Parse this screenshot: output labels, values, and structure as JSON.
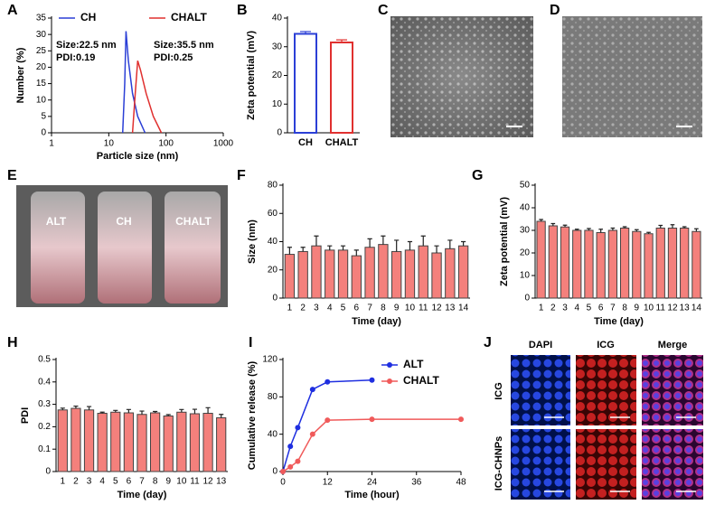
{
  "chart_data": [
    {
      "panel": "A",
      "type": "line",
      "xlabel": "Particle size (nm)",
      "ylabel": "Number (%)",
      "xscale": "log",
      "xlim": [
        1,
        1000
      ],
      "xticks": [
        1,
        10,
        100,
        1000
      ],
      "ylim": [
        0,
        35
      ],
      "yticks": [
        0,
        5,
        10,
        15,
        20,
        25,
        30,
        35
      ],
      "legend": "upper left",
      "series": [
        {
          "name": "CH",
          "color": "#2b3fd6",
          "x": [
            17.5,
            19,
            20,
            22,
            26,
            32,
            43
          ],
          "values": [
            0,
            15,
            31,
            22,
            12,
            5,
            0
          ]
        },
        {
          "name": "CHALT",
          "color": "#e0302f",
          "x": [
            26,
            29,
            32,
            36,
            45,
            60,
            83
          ],
          "values": [
            0,
            12,
            22,
            19,
            12,
            5,
            0
          ]
        }
      ],
      "annotations": [
        "Size:22.5 nm",
        "PDI:0.19",
        "Size:35.5 nm",
        "PDI:0.25"
      ]
    },
    {
      "panel": "B",
      "type": "bar",
      "ylabel": "Zeta potential (mV)",
      "categories": [
        "CH",
        "CHALT"
      ],
      "values": [
        34.5,
        31.5
      ],
      "errors": [
        0.8,
        0.9
      ],
      "color": "#ffffff",
      "edgecolors": [
        "#2b3fd6",
        "#e0302f"
      ],
      "ylim": [
        0,
        40
      ],
      "yticks": [
        0,
        10,
        20,
        30,
        40
      ]
    },
    {
      "panel": "F",
      "type": "bar",
      "xlabel": "Time (day)",
      "ylabel": "Size (nm)",
      "categories": [
        "1",
        "2",
        "3",
        "4",
        "5",
        "6",
        "7",
        "8",
        "9",
        "10",
        "11",
        "12",
        "13",
        "14"
      ],
      "values": [
        31,
        33,
        37,
        34,
        34,
        30,
        36,
        38,
        33,
        34,
        37,
        32,
        35,
        37
      ],
      "errors": [
        5,
        3,
        7,
        3,
        3,
        4,
        6,
        6,
        8,
        6,
        7,
        5,
        6,
        3
      ],
      "color": "#f4807c",
      "edgecolor": "#444444",
      "ylim": [
        0,
        80
      ],
      "yticks": [
        0,
        20,
        40,
        60,
        80
      ]
    },
    {
      "panel": "G",
      "type": "bar",
      "xlabel": "Time (day)",
      "ylabel": "Zeta potential (mV)",
      "categories": [
        "1",
        "2",
        "3",
        "4",
        "5",
        "6",
        "7",
        "8",
        "9",
        "10",
        "11",
        "12",
        "13",
        "14"
      ],
      "values": [
        34,
        32,
        31.5,
        30,
        30,
        29,
        30,
        31,
        29.5,
        28.5,
        31,
        31,
        31,
        29.5
      ],
      "errors": [
        0.8,
        1,
        0.8,
        0.5,
        0.8,
        1.5,
        1,
        0.6,
        0.8,
        0.6,
        1.2,
        1.5,
        0.6,
        1.2
      ],
      "color": "#f4807c",
      "edgecolor": "#444444",
      "ylim": [
        0,
        50
      ],
      "yticks": [
        0,
        10,
        20,
        30,
        40,
        50
      ]
    },
    {
      "panel": "H",
      "type": "bar",
      "xlabel": "Time (day)",
      "ylabel": "PDI",
      "categories": [
        "1",
        "2",
        "3",
        "4",
        "5",
        "6",
        "7",
        "8",
        "9",
        "10",
        "11",
        "12",
        "13"
      ],
      "values": [
        0.275,
        0.282,
        0.275,
        0.26,
        0.265,
        0.262,
        0.255,
        0.262,
        0.248,
        0.265,
        0.258,
        0.26,
        0.24
      ],
      "errors": [
        0.008,
        0.01,
        0.015,
        0.005,
        0.008,
        0.015,
        0.015,
        0.006,
        0.006,
        0.012,
        0.02,
        0.025,
        0.015
      ],
      "color": "#f4807c",
      "edgecolor": "#444444",
      "ylim": [
        0,
        0.5
      ],
      "yticks": [
        0,
        0.1,
        0.2,
        0.3,
        0.4,
        0.5
      ]
    },
    {
      "panel": "I",
      "type": "line",
      "xlabel": "Time (hour)",
      "ylabel": "Cumulative release (%)",
      "markers": true,
      "xlim": [
        0,
        48
      ],
      "xticks": [
        0,
        12,
        24,
        36,
        48
      ],
      "ylim": [
        0,
        120
      ],
      "yticks": [
        0,
        40,
        80,
        120
      ],
      "legend": "upper right",
      "series": [
        {
          "name": "ALT",
          "color": "#1f2fe0",
          "x": [
            0,
            2,
            4,
            8,
            12,
            24
          ],
          "values": [
            0,
            27,
            47,
            88,
            96,
            98
          ]
        },
        {
          "name": "CHALT",
          "color": "#f05a5a",
          "x": [
            0,
            2,
            4,
            8,
            12,
            24,
            48
          ],
          "values": [
            0,
            5,
            11,
            40,
            55,
            56,
            56
          ]
        }
      ]
    }
  ],
  "images": [
    {
      "panel": "C"
    },
    {
      "panel": "D"
    },
    {
      "panel": "E",
      "labels": [
        "ALT",
        "CH",
        "CHALT"
      ]
    },
    {
      "panel": "J",
      "columns": [
        "DAPI",
        "ICG",
        "Merge"
      ],
      "rows": [
        "ICG",
        "ICG-CHNPs"
      ]
    }
  ]
}
